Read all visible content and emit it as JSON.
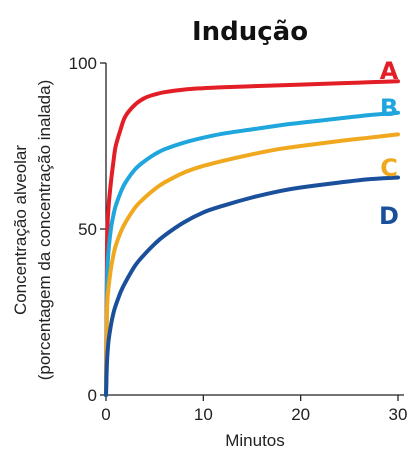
{
  "chart_data": {
    "type": "line",
    "title": "Indução",
    "xlabel": "Minutos",
    "ylabel_line1": "Concentração alveolar",
    "ylabel_line2": "(porcentagem da concentração inalada)",
    "xlim": [
      0,
      30
    ],
    "ylim": [
      0,
      100
    ],
    "xticks": [
      0,
      10,
      20,
      30
    ],
    "yticks": [
      0,
      50,
      100
    ],
    "grid": false,
    "series": [
      {
        "name": "A",
        "color": "#e31e26",
        "x": [
          0,
          0.1,
          0.25,
          0.5,
          0.75,
          1,
          1.5,
          2,
          3,
          4,
          5,
          6,
          8,
          10,
          12,
          15,
          18,
          20,
          24,
          27,
          30
        ],
        "y": [
          0,
          44,
          56,
          64,
          70,
          75,
          80,
          84,
          87.5,
          89.5,
          90.5,
          91.2,
          92,
          92.4,
          92.7,
          93,
          93.3,
          93.5,
          93.9,
          94.2,
          94.5
        ]
      },
      {
        "name": "B",
        "color": "#1ea6dd",
        "x": [
          0,
          0.1,
          0.25,
          0.5,
          0.75,
          1,
          1.5,
          2,
          3,
          4,
          5,
          6,
          8,
          10,
          12,
          15,
          18,
          20,
          24,
          27,
          30
        ],
        "y": [
          0,
          33,
          43,
          50,
          54,
          57,
          61,
          64,
          68,
          70.5,
          72.5,
          74,
          76,
          77.5,
          78.7,
          80,
          81.3,
          82,
          83.3,
          84.3,
          85
        ]
      },
      {
        "name": "C",
        "color": "#f0a81e",
        "x": [
          0,
          0.1,
          0.25,
          0.5,
          0.75,
          1,
          1.5,
          2,
          3,
          4,
          5,
          6,
          8,
          10,
          12,
          15,
          18,
          20,
          24,
          27,
          30
        ],
        "y": [
          0,
          25,
          32,
          38,
          42,
          45,
          49,
          52,
          56.5,
          59.5,
          62,
          64,
          67,
          69,
          70.5,
          72.5,
          74.2,
          75,
          76.5,
          77.5,
          78.5
        ]
      },
      {
        "name": "D",
        "color": "#1a4f9c",
        "x": [
          0,
          0.1,
          0.25,
          0.5,
          0.75,
          1,
          1.5,
          2,
          3,
          4,
          5,
          6,
          8,
          10,
          12,
          15,
          18,
          20,
          24,
          27,
          30
        ],
        "y": [
          0,
          10,
          16,
          21,
          24.5,
          27,
          31,
          34,
          39,
          42.5,
          45.5,
          48,
          52,
          55,
          57,
          59.5,
          61.5,
          62.5,
          64,
          65,
          65.5
        ]
      }
    ]
  }
}
